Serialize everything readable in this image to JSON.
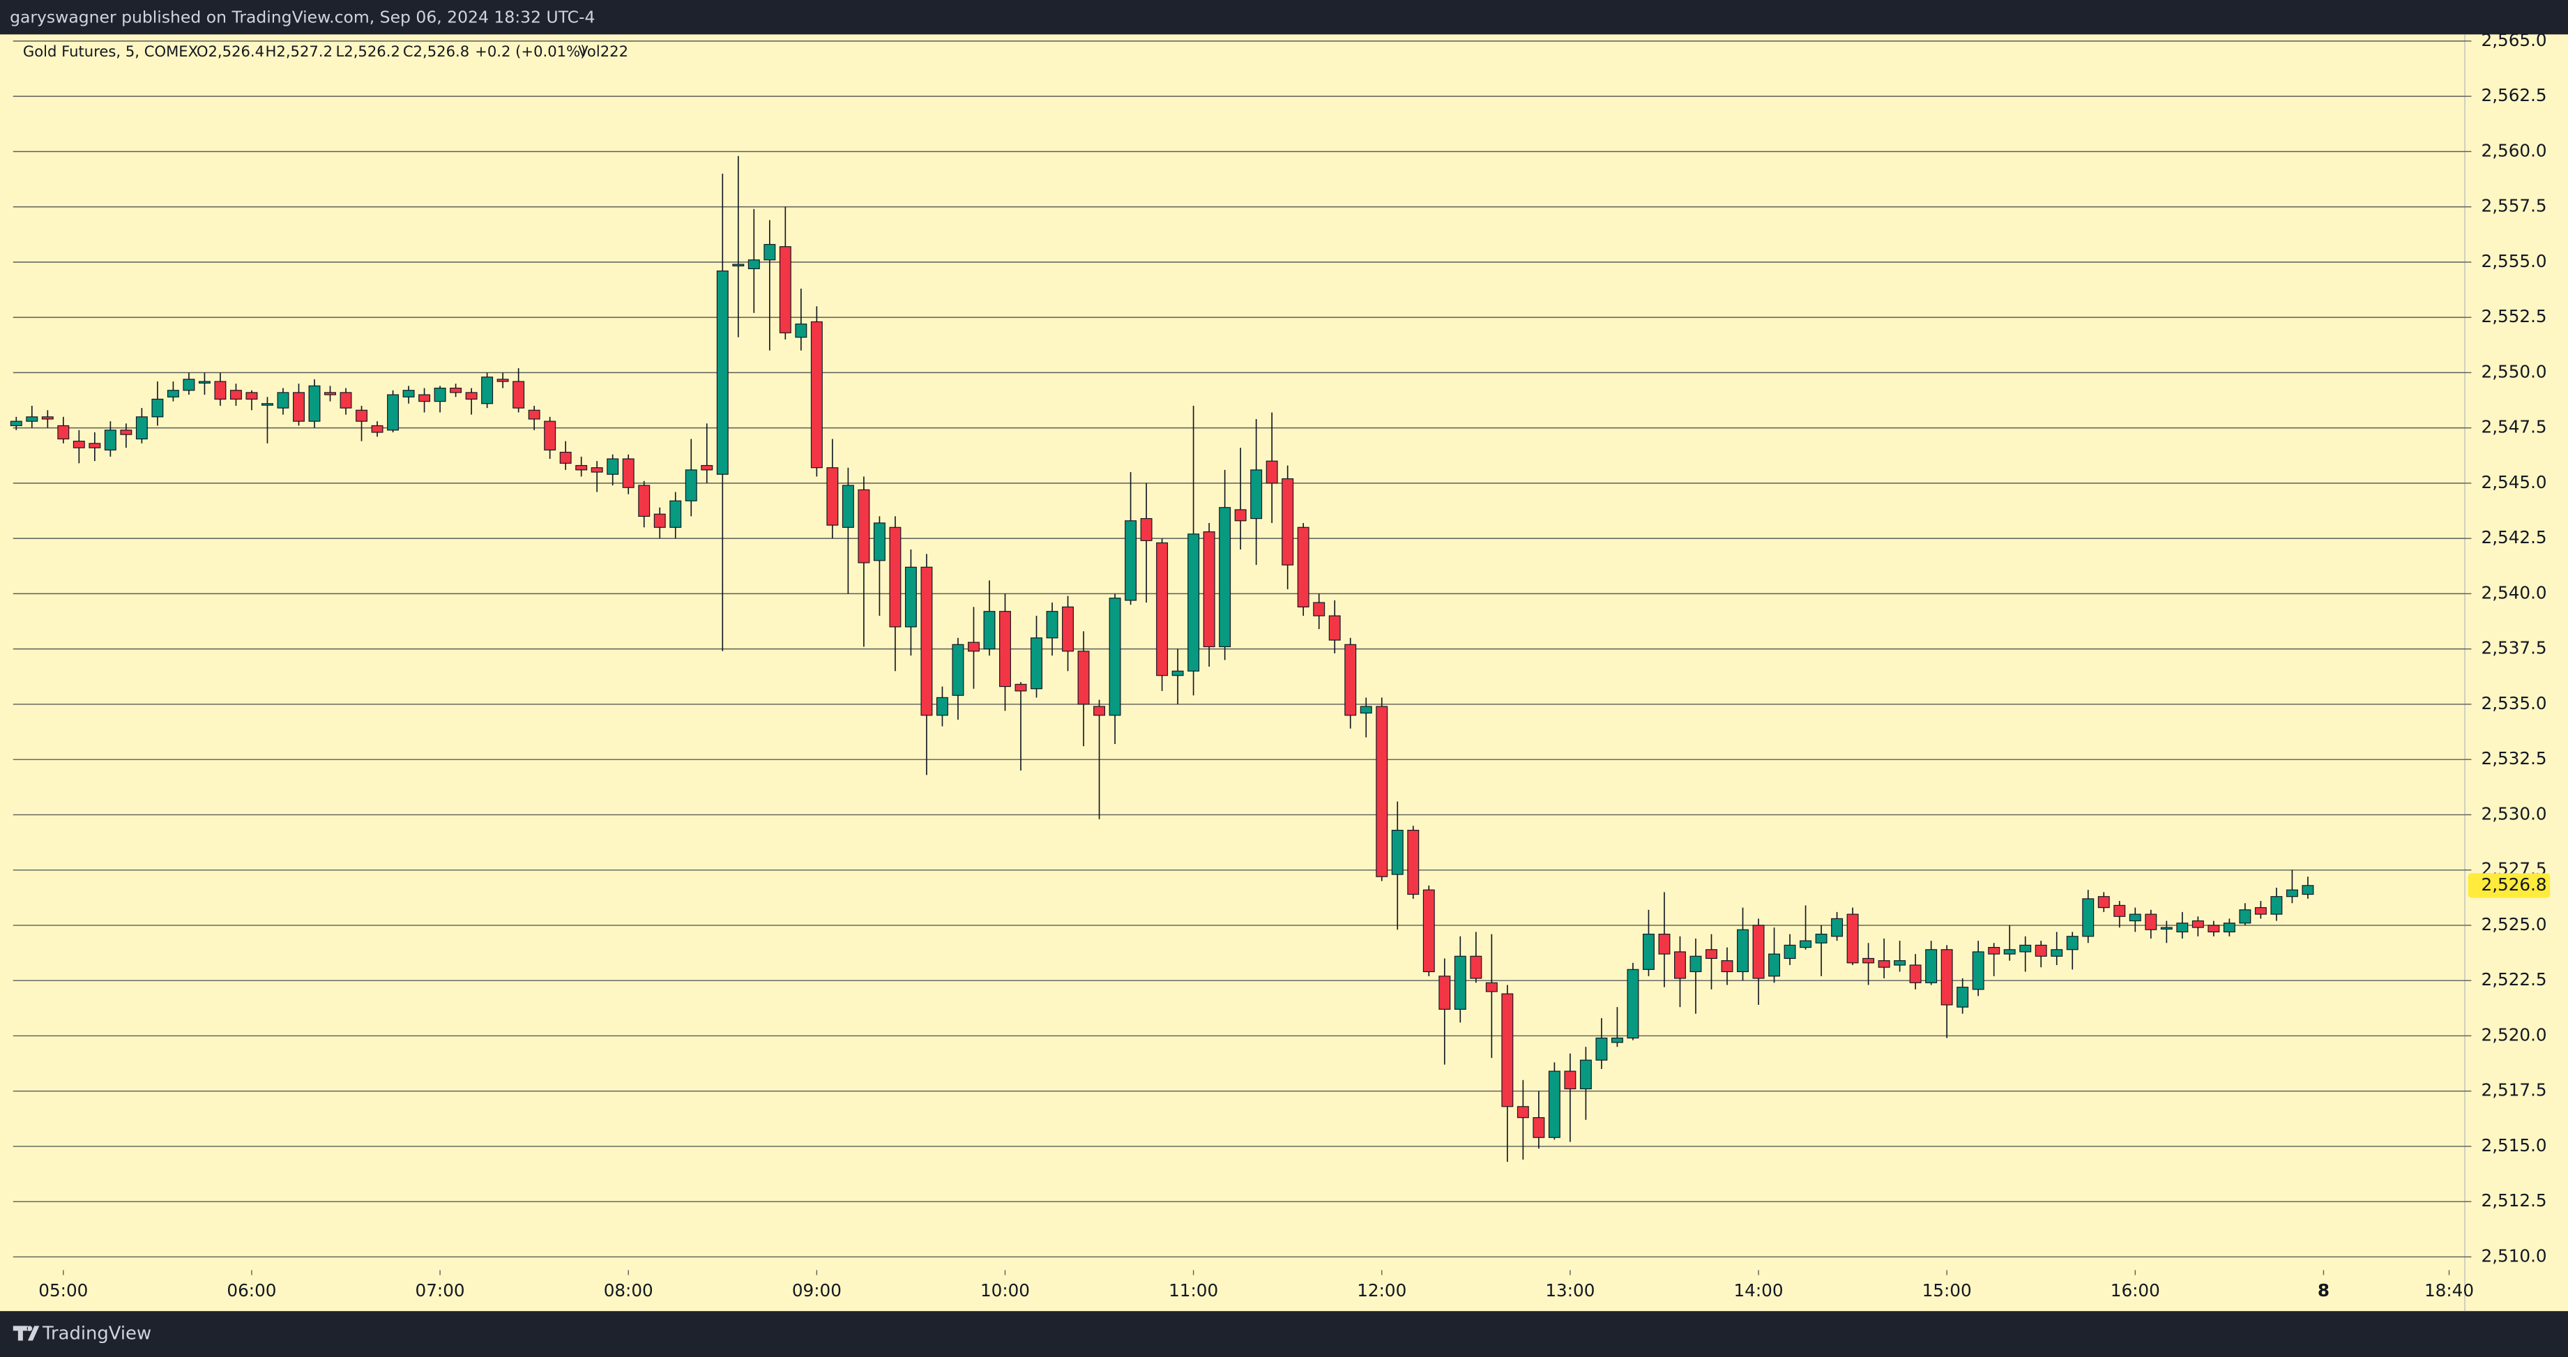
{
  "header": "garyswagner published on TradingView.com, Sep 06, 2024 18:32 UTC-4",
  "footer": "TradingView",
  "chart_data": {
    "type": "candlestick",
    "legend": {
      "symbol": "Gold Futures, 5, COMEX",
      "open": "O2,526.4",
      "high": "H2,527.2",
      "low": "L2,526.2",
      "close": "C2,526.8",
      "change": "+0.2 (+0.01%)",
      "volume": "Vol222"
    },
    "x": [
      "04:45",
      "04:50",
      "04:55",
      "05:00",
      "05:05",
      "05:10",
      "05:15",
      "05:20",
      "05:25",
      "05:30",
      "05:35",
      "05:40",
      "05:45",
      "05:50",
      "05:55",
      "06:00",
      "06:05",
      "06:10",
      "06:15",
      "06:20",
      "06:25",
      "06:30",
      "06:35",
      "06:40",
      "06:45",
      "06:50",
      "06:55",
      "07:00",
      "07:05",
      "07:10",
      "07:15",
      "07:20",
      "07:25",
      "07:30",
      "07:35",
      "07:40",
      "07:45",
      "07:50",
      "07:55",
      "08:00",
      "08:05",
      "08:10",
      "08:15",
      "08:20",
      "08:25",
      "08:30",
      "08:35",
      "08:40",
      "08:45",
      "08:50",
      "08:55",
      "09:00",
      "09:05",
      "09:10",
      "09:15",
      "09:20",
      "09:25",
      "09:30",
      "09:35",
      "09:40",
      "09:45",
      "09:50",
      "09:55",
      "10:00",
      "10:05",
      "10:10",
      "10:15",
      "10:20",
      "10:25",
      "10:30",
      "10:35",
      "10:40",
      "10:45",
      "10:50",
      "10:55",
      "11:00",
      "11:05",
      "11:10",
      "11:15",
      "11:20",
      "11:25",
      "11:30",
      "11:35",
      "11:40",
      "11:45",
      "11:50",
      "11:55",
      "12:00",
      "12:05",
      "12:10",
      "12:15",
      "12:20",
      "12:25",
      "12:30",
      "12:35",
      "12:40",
      "12:45",
      "12:50",
      "12:55",
      "13:00",
      "13:05",
      "13:10",
      "13:15",
      "13:20",
      "13:25",
      "13:30",
      "13:35",
      "13:40",
      "13:45",
      "13:50",
      "13:55",
      "14:00",
      "14:05",
      "14:10",
      "14:15",
      "14:20",
      "14:25",
      "14:30",
      "14:35",
      "14:40",
      "14:45",
      "14:50",
      "14:55",
      "15:00",
      "15:05",
      "15:10",
      "15:15",
      "15:20",
      "15:25",
      "15:30",
      "15:35",
      "15:40",
      "15:45",
      "15:50",
      "15:55",
      "16:00",
      "16:05",
      "16:10",
      "16:15",
      "16:20",
      "16:25",
      "16:30",
      "16:35",
      "16:40",
      "16:45",
      "16:50",
      "16:55"
    ],
    "open": [
      2547.6,
      2547.8,
      2548.0,
      2547.6,
      2546.9,
      2546.8,
      2546.5,
      2547.4,
      2547.0,
      2548.0,
      2548.9,
      2549.2,
      2549.6,
      2549.6,
      2549.2,
      2549.1,
      2548.6,
      2548.4,
      2549.1,
      2547.8,
      2549.1,
      2549.1,
      2548.3,
      2547.6,
      2547.4,
      2548.9,
      2549.0,
      2548.7,
      2549.3,
      2549.1,
      2548.6,
      2549.7,
      2549.6,
      2548.3,
      2547.8,
      2546.4,
      2545.8,
      2545.7,
      2545.4,
      2546.1,
      2544.9,
      2543.6,
      2543.0,
      2544.2,
      2545.8,
      2545.4,
      2554.9,
      2554.7,
      2555.1,
      2555.7,
      2551.6,
      2552.3,
      2545.7,
      2543.0,
      2544.7,
      2541.5,
      2543.0,
      2538.5,
      2541.2,
      2534.5,
      2535.4,
      2537.8,
      2537.5,
      2539.2,
      2535.9,
      2535.7,
      2538.0,
      2539.4,
      2537.4,
      2534.9,
      2534.5,
      2539.7,
      2543.4,
      2542.3,
      2536.3,
      2536.5,
      2542.8,
      2537.6,
      2543.8,
      2543.4,
      2546.0,
      2545.2,
      2543.0,
      2539.6,
      2539.0,
      2537.7,
      2534.6,
      2534.9,
      2527.3,
      2529.3,
      2526.6,
      2522.7,
      2521.2,
      2523.6,
      2522.4,
      2521.9,
      2516.8,
      2516.3,
      2515.4,
      2518.4,
      2517.6,
      2518.9,
      2519.7,
      2519.9,
      2523.0,
      2524.6,
      2523.8,
      2522.9,
      2523.9,
      2523.4,
      2522.9,
      2525.0,
      2522.7,
      2523.5,
      2524.0,
      2524.2,
      2524.5,
      2525.5,
      2523.5,
      2523.4,
      2523.2,
      2523.2,
      2522.4,
      2523.9,
      2521.3,
      2522.1,
      2524.0,
      2523.7,
      2523.8,
      2524.1,
      2523.6,
      2523.9,
      2524.5,
      2526.3,
      2525.9,
      2525.2,
      2525.5,
      2524.9,
      2524.7,
      2525.2,
      2525.0,
      2524.7,
      2525.1,
      2525.8,
      2525.5,
      2526.3,
      2526.4
    ],
    "high": [
      2548.0,
      2548.5,
      2548.3,
      2548.0,
      2547.4,
      2547.3,
      2547.8,
      2547.7,
      2548.4,
      2549.6,
      2549.6,
      2550.0,
      2550.0,
      2550.0,
      2549.5,
      2549.2,
      2548.9,
      2549.3,
      2549.5,
      2549.7,
      2549.4,
      2549.3,
      2548.5,
      2547.8,
      2549.2,
      2549.4,
      2549.3,
      2549.4,
      2549.5,
      2549.3,
      2550.0,
      2550.0,
      2550.2,
      2548.5,
      2548.0,
      2546.9,
      2546.2,
      2546.0,
      2546.3,
      2546.3,
      2545.1,
      2543.9,
      2544.6,
      2547.0,
      2547.7,
      2559.0,
      2559.8,
      2557.4,
      2556.9,
      2557.5,
      2553.8,
      2553.0,
      2547.0,
      2545.7,
      2545.3,
      2543.5,
      2543.5,
      2542.0,
      2541.8,
      2535.8,
      2538.0,
      2539.4,
      2540.6,
      2540.0,
      2536.0,
      2539.0,
      2539.6,
      2539.9,
      2538.3,
      2535.2,
      2540.0,
      2545.5,
      2545.0,
      2542.5,
      2537.5,
      2548.5,
      2543.2,
      2545.6,
      2546.6,
      2547.9,
      2548.2,
      2545.8,
      2543.2,
      2540.0,
      2539.7,
      2538.0,
      2535.3,
      2535.3,
      2530.6,
      2529.5,
      2526.8,
      2523.5,
      2524.5,
      2524.7,
      2524.6,
      2522.3,
      2518.0,
      2517.5,
      2518.8,
      2519.2,
      2519.5,
      2520.8,
      2521.3,
      2523.3,
      2525.7,
      2526.5,
      2524.5,
      2524.4,
      2524.6,
      2524.0,
      2525.8,
      2525.3,
      2524.9,
      2524.6,
      2525.9,
      2525.0,
      2525.6,
      2525.8,
      2524.2,
      2524.4,
      2524.3,
      2523.7,
      2524.3,
      2524.1,
      2522.6,
      2524.3,
      2524.2,
      2525.0,
      2524.5,
      2524.3,
      2524.7,
      2524.7,
      2526.6,
      2526.5,
      2526.1,
      2525.8,
      2525.7,
      2525.2,
      2525.6,
      2525.4,
      2525.2,
      2525.3,
      2526.0,
      2526.1,
      2526.7,
      2527.5,
      2527.2
    ],
    "low": [
      2547.4,
      2547.5,
      2547.5,
      2546.8,
      2545.9,
      2546.0,
      2546.2,
      2546.6,
      2546.8,
      2547.6,
      2548.7,
      2549.0,
      2549.0,
      2548.5,
      2548.5,
      2548.3,
      2546.8,
      2548.1,
      2547.6,
      2547.5,
      2548.7,
      2548.1,
      2546.9,
      2547.1,
      2547.3,
      2548.6,
      2548.2,
      2548.2,
      2548.9,
      2548.1,
      2548.4,
      2549.3,
      2548.2,
      2547.4,
      2546.1,
      2545.6,
      2545.3,
      2544.6,
      2544.9,
      2544.5,
      2543.0,
      2542.5,
      2542.5,
      2543.5,
      2545.0,
      2537.4,
      2551.6,
      2552.7,
      2551.0,
      2551.5,
      2551.0,
      2545.3,
      2542.5,
      2540.0,
      2537.6,
      2539.0,
      2536.5,
      2537.2,
      2531.8,
      2534.0,
      2534.3,
      2535.7,
      2537.2,
      2534.7,
      2532.0,
      2535.3,
      2537.2,
      2536.5,
      2533.1,
      2529.8,
      2533.2,
      2539.5,
      2539.6,
      2535.6,
      2535.0,
      2535.4,
      2536.7,
      2537.0,
      2542.0,
      2541.3,
      2543.2,
      2540.2,
      2539.0,
      2538.4,
      2537.3,
      2533.9,
      2533.5,
      2527.0,
      2524.8,
      2526.2,
      2522.7,
      2518.7,
      2520.6,
      2522.4,
      2519.0,
      2514.3,
      2514.4,
      2514.9,
      2515.3,
      2515.2,
      2516.2,
      2518.5,
      2519.5,
      2519.8,
      2522.7,
      2522.2,
      2521.3,
      2521.0,
      2522.1,
      2522.3,
      2522.5,
      2521.4,
      2522.4,
      2523.2,
      2523.9,
      2522.7,
      2524.3,
      2523.2,
      2522.3,
      2522.6,
      2522.9,
      2522.1,
      2522.3,
      2519.9,
      2521.0,
      2521.8,
      2522.7,
      2523.4,
      2522.9,
      2523.1,
      2523.2,
      2523.0,
      2524.2,
      2525.6,
      2524.9,
      2524.7,
      2524.4,
      2524.2,
      2524.4,
      2524.5,
      2524.5,
      2524.5,
      2525.0,
      2525.3,
      2525.2,
      2526.0,
      2526.2
    ],
    "close": [
      2547.8,
      2548.0,
      2547.9,
      2547.0,
      2546.6,
      2546.6,
      2547.4,
      2547.2,
      2548.0,
      2548.8,
      2549.2,
      2549.7,
      2549.6,
      2548.8,
      2548.8,
      2548.8,
      2548.6,
      2549.1,
      2547.8,
      2549.4,
      2549.0,
      2548.4,
      2547.8,
      2547.3,
      2549.0,
      2549.2,
      2548.7,
      2549.3,
      2549.1,
      2548.8,
      2549.8,
      2549.6,
      2548.4,
      2547.9,
      2546.5,
      2545.9,
      2545.6,
      2545.5,
      2546.1,
      2544.8,
      2543.5,
      2543.0,
      2544.2,
      2545.6,
      2545.6,
      2554.6,
      2554.9,
      2555.1,
      2555.8,
      2551.8,
      2552.2,
      2545.7,
      2543.1,
      2544.9,
      2541.4,
      2543.2,
      2538.5,
      2541.2,
      2534.5,
      2535.3,
      2537.7,
      2537.4,
      2539.2,
      2535.8,
      2535.6,
      2538.0,
      2539.2,
      2537.4,
      2535.0,
      2534.5,
      2539.8,
      2543.3,
      2542.4,
      2536.3,
      2536.5,
      2542.7,
      2537.6,
      2543.9,
      2543.3,
      2545.6,
      2545.0,
      2541.3,
      2539.4,
      2539.0,
      2537.9,
      2534.5,
      2534.9,
      2527.2,
      2529.3,
      2526.4,
      2522.9,
      2521.2,
      2523.6,
      2522.6,
      2522.0,
      2516.8,
      2516.3,
      2515.4,
      2518.4,
      2517.6,
      2518.9,
      2519.9,
      2519.9,
      2523.0,
      2524.6,
      2523.7,
      2522.6,
      2523.6,
      2523.5,
      2522.9,
      2524.8,
      2522.6,
      2523.7,
      2524.1,
      2524.3,
      2524.6,
      2525.3,
      2523.3,
      2523.3,
      2523.1,
      2523.4,
      2522.4,
      2523.9,
      2521.4,
      2522.2,
      2523.8,
      2523.7,
      2523.9,
      2524.1,
      2523.6,
      2523.9,
      2524.5,
      2526.2,
      2525.8,
      2525.4,
      2525.5,
      2524.8,
      2524.9,
      2525.1,
      2524.9,
      2524.7,
      2525.1,
      2525.7,
      2525.5,
      2526.3,
      2526.6,
      2526.8
    ],
    "up_color": "#089981",
    "down_color": "#f23645",
    "xlim": [
      -0.2,
      156
    ],
    "xticks": [
      {
        "value": 3,
        "label": "05:00"
      },
      {
        "value": 15,
        "label": "06:00"
      },
      {
        "value": 27,
        "label": "07:00"
      },
      {
        "value": 39,
        "label": "08:00"
      },
      {
        "value": 51,
        "label": "09:00"
      },
      {
        "value": 63,
        "label": "10:00"
      },
      {
        "value": 75,
        "label": "11:00"
      },
      {
        "value": 87,
        "label": "12:00"
      },
      {
        "value": 99,
        "label": "13:00"
      },
      {
        "value": 111,
        "label": "14:00"
      },
      {
        "value": 123,
        "label": "15:00"
      },
      {
        "value": 135,
        "label": "16:00"
      },
      {
        "value": 147,
        "label": "8"
      },
      {
        "value": 155,
        "label": "18:40"
      }
    ],
    "ylim": [
      2509.4,
      2565.3
    ],
    "yticks": [
      {
        "value": 2510,
        "label": "2,510.0"
      },
      {
        "value": 2512.5,
        "label": "2,512.5"
      },
      {
        "value": 2515,
        "label": "2,515.0"
      },
      {
        "value": 2517.5,
        "label": "2,517.5"
      },
      {
        "value": 2520,
        "label": "2,520.0"
      },
      {
        "value": 2522.5,
        "label": "2,522.5"
      },
      {
        "value": 2525,
        "label": "2,525.0"
      },
      {
        "value": 2527.5,
        "label": "2,527.5"
      },
      {
        "value": 2530,
        "label": "2,530.0"
      },
      {
        "value": 2532.5,
        "label": "2,532.5"
      },
      {
        "value": 2535,
        "label": "2,535.0"
      },
      {
        "value": 2537.5,
        "label": "2,537.5"
      },
      {
        "value": 2540,
        "label": "2,540.0"
      },
      {
        "value": 2542.5,
        "label": "2,542.5"
      },
      {
        "value": 2545,
        "label": "2,545.0"
      },
      {
        "value": 2547.5,
        "label": "2,547.5"
      },
      {
        "value": 2550,
        "label": "2,550.0"
      },
      {
        "value": 2552.5,
        "label": "2,552.5"
      },
      {
        "value": 2555,
        "label": "2,555.0"
      },
      {
        "value": 2557.5,
        "label": "2,557.5"
      },
      {
        "value": 2560,
        "label": "2,560.0"
      },
      {
        "value": 2562.5,
        "label": "2,562.5"
      },
      {
        "value": 2565,
        "label": "2,565.0"
      }
    ],
    "grid": true,
    "last_price": {
      "value": 2526.8,
      "label": "2,526.8"
    },
    "last_price_color": "#ffeb3b"
  }
}
